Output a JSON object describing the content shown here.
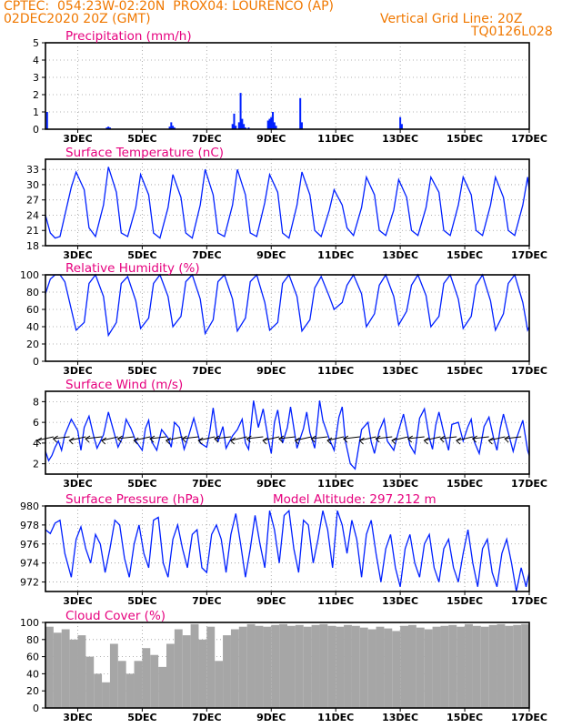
{
  "header": {
    "line1": "CPTEC:  054:23W-02:20N  PROX04: LOURENCO (AP)",
    "line2": "02DEC2020 20Z (GMT)",
    "grid_note": "Vertical Grid Line: 20Z",
    "code": "TQ0126L028"
  },
  "colors": {
    "header": "#f07800",
    "title": "#e6007e",
    "line": "#0020ff",
    "cloud": "#a6a6a6"
  },
  "x_axis": {
    "ticks": [
      "3DEC",
      "5DEC",
      "7DEC",
      "9DEC",
      "11DEC",
      "13DEC",
      "15DEC",
      "17DEC"
    ],
    "tick_days": [
      3,
      5,
      7,
      9,
      11,
      13,
      15,
      17
    ],
    "range_days": [
      2.0,
      17.0
    ]
  },
  "chart_data": [
    {
      "type": "bar",
      "title": "Precipitation (mm/h)",
      "ylim": [
        0,
        5
      ],
      "yticks": [
        0,
        1,
        2,
        3,
        4,
        5
      ],
      "grid": true,
      "x": [
        2.05,
        3.9,
        3.95,
        4.0,
        5.85,
        5.9,
        5.95,
        6.0,
        7.8,
        7.85,
        7.9,
        8.0,
        8.05,
        8.1,
        8.15,
        8.2,
        8.3,
        8.9,
        8.95,
        9.0,
        9.05,
        9.1,
        9.15,
        9.9,
        9.95,
        13.0,
        13.05
      ],
      "values": [
        1.0,
        0.1,
        0.15,
        0.1,
        0.15,
        0.4,
        0.2,
        0.1,
        0.3,
        0.9,
        0.2,
        0.4,
        2.1,
        0.6,
        0.3,
        0.1,
        0.1,
        0.5,
        0.6,
        0.7,
        1.0,
        0.4,
        0.2,
        1.8,
        0.4,
        0.7,
        0.3
      ]
    },
    {
      "type": "line",
      "title": "Surface Temperature (nC)",
      "ylim": [
        18,
        35
      ],
      "yticks": [
        18,
        21,
        24,
        27,
        30,
        33
      ],
      "grid": true,
      "x": [
        2.0,
        2.15,
        2.3,
        2.45,
        2.6,
        2.8,
        2.95,
        3.2,
        3.35,
        3.55,
        3.8,
        3.95,
        4.2,
        4.35,
        4.55,
        4.8,
        4.95,
        5.2,
        5.35,
        5.55,
        5.8,
        5.95,
        6.2,
        6.35,
        6.55,
        6.8,
        6.95,
        7.2,
        7.35,
        7.55,
        7.8,
        7.95,
        8.2,
        8.35,
        8.55,
        8.8,
        8.95,
        9.2,
        9.35,
        9.55,
        9.8,
        9.95,
        10.2,
        10.35,
        10.55,
        10.8,
        10.95,
        11.2,
        11.35,
        11.55,
        11.8,
        11.95,
        12.2,
        12.35,
        12.55,
        12.8,
        12.95,
        13.2,
        13.35,
        13.55,
        13.8,
        13.95,
        14.2,
        14.35,
        14.55,
        14.8,
        14.95,
        15.2,
        15.35,
        15.55,
        15.8,
        15.95,
        16.2,
        16.35,
        16.55,
        16.8,
        16.95,
        17.0
      ],
      "values": [
        24.0,
        20.5,
        19.5,
        19.8,
        24.0,
        29.5,
        32.5,
        29.0,
        21.5,
        19.8,
        26.0,
        33.5,
        28.5,
        20.5,
        19.8,
        25.5,
        32.0,
        28.0,
        20.5,
        19.5,
        25.5,
        32.0,
        27.5,
        20.5,
        19.5,
        26.0,
        33.0,
        28.0,
        20.5,
        19.8,
        26.0,
        33.0,
        28.0,
        20.5,
        19.8,
        26.5,
        32.0,
        28.5,
        20.5,
        19.5,
        26.0,
        32.5,
        28.0,
        21.0,
        19.8,
        25.0,
        29.0,
        26.0,
        21.5,
        20.0,
        25.5,
        31.5,
        28.0,
        21.0,
        20.0,
        25.0,
        31.0,
        27.5,
        21.0,
        20.0,
        25.5,
        31.5,
        28.5,
        21.0,
        20.0,
        26.0,
        31.5,
        28.0,
        21.0,
        20.0,
        26.0,
        31.5,
        27.5,
        21.0,
        20.0,
        26.0,
        31.5,
        29.0
      ]
    },
    {
      "type": "line",
      "title": "Relative Humidity (%)",
      "ylim": [
        0,
        100
      ],
      "yticks": [
        0,
        20,
        40,
        60,
        80,
        100
      ],
      "grid": true,
      "x": [
        2.0,
        2.15,
        2.3,
        2.45,
        2.6,
        2.8,
        2.95,
        3.2,
        3.35,
        3.55,
        3.8,
        3.95,
        4.2,
        4.35,
        4.55,
        4.8,
        4.95,
        5.2,
        5.35,
        5.55,
        5.8,
        5.95,
        6.2,
        6.35,
        6.55,
        6.8,
        6.95,
        7.2,
        7.35,
        7.55,
        7.8,
        7.95,
        8.2,
        8.35,
        8.55,
        8.8,
        8.95,
        9.2,
        9.35,
        9.55,
        9.8,
        9.95,
        10.2,
        10.35,
        10.55,
        10.8,
        10.95,
        11.2,
        11.35,
        11.55,
        11.8,
        11.95,
        12.2,
        12.35,
        12.55,
        12.8,
        12.95,
        13.2,
        13.35,
        13.55,
        13.8,
        13.95,
        14.2,
        14.35,
        14.55,
        14.8,
        14.95,
        15.2,
        15.35,
        15.55,
        15.8,
        15.95,
        16.2,
        16.35,
        16.55,
        16.8,
        16.95,
        17.0
      ],
      "values": [
        78,
        95,
        100,
        100,
        92,
        60,
        36,
        45,
        90,
        100,
        75,
        30,
        45,
        90,
        98,
        70,
        38,
        50,
        90,
        100,
        75,
        40,
        52,
        92,
        100,
        72,
        32,
        48,
        92,
        100,
        72,
        35,
        50,
        92,
        100,
        68,
        36,
        45,
        90,
        100,
        75,
        35,
        48,
        85,
        98,
        75,
        60,
        68,
        88,
        100,
        78,
        40,
        55,
        88,
        100,
        75,
        42,
        58,
        88,
        100,
        76,
        40,
        52,
        90,
        100,
        72,
        38,
        52,
        88,
        100,
        70,
        36,
        55,
        90,
        100,
        68,
        36,
        40
      ]
    },
    {
      "type": "line",
      "title": "Surface Wind (m/s)",
      "ylim": [
        1,
        9
      ],
      "yticks": [
        2,
        4,
        6,
        8
      ],
      "grid": true,
      "x": [
        2.0,
        2.1,
        2.2,
        2.3,
        2.4,
        2.5,
        2.6,
        2.8,
        3.0,
        3.1,
        3.2,
        3.35,
        3.5,
        3.6,
        3.8,
        3.95,
        4.1,
        4.25,
        4.4,
        4.5,
        4.65,
        4.8,
        5.0,
        5.1,
        5.2,
        5.3,
        5.45,
        5.6,
        5.8,
        5.9,
        6.0,
        6.15,
        6.3,
        6.45,
        6.6,
        6.8,
        7.0,
        7.1,
        7.2,
        7.35,
        7.5,
        7.6,
        7.8,
        7.95,
        8.1,
        8.2,
        8.3,
        8.45,
        8.6,
        8.75,
        8.9,
        9.0,
        9.1,
        9.2,
        9.35,
        9.5,
        9.6,
        9.8,
        10.0,
        10.1,
        10.2,
        10.35,
        10.5,
        10.6,
        10.8,
        10.95,
        11.1,
        11.2,
        11.3,
        11.45,
        11.6,
        11.8,
        12.0,
        12.1,
        12.2,
        12.35,
        12.5,
        12.6,
        12.8,
        12.95,
        13.1,
        13.2,
        13.3,
        13.45,
        13.6,
        13.75,
        13.9,
        14.0,
        14.1,
        14.2,
        14.35,
        14.5,
        14.6,
        14.8,
        14.95,
        15.1,
        15.2,
        15.3,
        15.45,
        15.6,
        15.75,
        15.9,
        16.0,
        16.1,
        16.2,
        16.35,
        16.5,
        16.6,
        16.8,
        16.95,
        17.0
      ],
      "values": [
        3.2,
        2.3,
        2.8,
        3.6,
        4.2,
        3.3,
        4.8,
        6.3,
        5.2,
        3.3,
        5.5,
        6.6,
        4.6,
        3.5,
        4.8,
        7.0,
        5.3,
        3.6,
        4.6,
        6.3,
        5.4,
        4.2,
        3.3,
        5.4,
        6.2,
        4.1,
        3.3,
        5.3,
        4.5,
        3.6,
        6.0,
        5.5,
        3.4,
        4.8,
        6.4,
        4.0,
        3.6,
        5.2,
        7.4,
        4.1,
        5.6,
        3.5,
        4.7,
        5.3,
        6.3,
        4.0,
        3.4,
        8.1,
        5.5,
        7.3,
        4.5,
        3.0,
        6.0,
        7.2,
        4.0,
        5.5,
        7.5,
        3.5,
        5.4,
        7.0,
        5.0,
        3.5,
        8.1,
        6.2,
        4.4,
        3.3,
        6.5,
        7.5,
        4.2,
        2.0,
        1.5,
        5.3,
        6.0,
        4.1,
        3.0,
        5.2,
        6.3,
        4.2,
        3.3,
        5.2,
        6.8,
        5.3,
        3.8,
        3.0,
        6.4,
        7.3,
        4.5,
        3.4,
        5.7,
        7.0,
        5.0,
        3.3,
        5.8,
        6.0,
        4.2,
        5.6,
        6.3,
        4.1,
        3.0,
        5.6,
        6.5,
        4.4,
        3.3,
        5.4,
        6.8,
        5.0,
        3.2,
        4.4,
        6.2,
        3.3,
        2.8
      ]
    },
    {
      "type": "line",
      "title": "Surface Pressure (hPa)",
      "annotation": "Model Altitude: 297.212 m",
      "ylim": [
        971,
        980
      ],
      "yticks": [
        972,
        974,
        976,
        978,
        980
      ],
      "grid": true,
      "x": [
        2.0,
        2.15,
        2.3,
        2.45,
        2.6,
        2.8,
        2.95,
        3.1,
        3.25,
        3.4,
        3.55,
        3.7,
        3.85,
        4.0,
        4.15,
        4.3,
        4.45,
        4.6,
        4.75,
        4.9,
        5.05,
        5.2,
        5.35,
        5.5,
        5.65,
        5.8,
        5.95,
        6.1,
        6.25,
        6.4,
        6.55,
        6.7,
        6.85,
        7.0,
        7.15,
        7.3,
        7.45,
        7.6,
        7.75,
        7.9,
        8.05,
        8.2,
        8.35,
        8.5,
        8.65,
        8.8,
        8.95,
        9.1,
        9.25,
        9.4,
        9.55,
        9.7,
        9.85,
        10.0,
        10.15,
        10.3,
        10.45,
        10.6,
        10.75,
        10.9,
        11.05,
        11.2,
        11.35,
        11.5,
        11.65,
        11.8,
        11.95,
        12.1,
        12.25,
        12.4,
        12.55,
        12.7,
        12.85,
        13.0,
        13.15,
        13.3,
        13.45,
        13.6,
        13.75,
        13.9,
        14.05,
        14.2,
        14.35,
        14.5,
        14.65,
        14.8,
        14.95,
        15.1,
        15.25,
        15.4,
        15.55,
        15.7,
        15.85,
        16.0,
        16.15,
        16.3,
        16.45,
        16.6,
        16.75,
        16.9,
        17.0
      ],
      "values": [
        977.5,
        977.1,
        978.2,
        978.5,
        975.0,
        972.5,
        976.5,
        977.8,
        975.5,
        974.0,
        977.0,
        976.0,
        973.0,
        975.5,
        978.5,
        978.0,
        974.5,
        972.5,
        976.0,
        978.0,
        975.0,
        973.5,
        978.5,
        978.8,
        974.0,
        972.5,
        976.5,
        978.0,
        975.5,
        973.5,
        977.0,
        977.5,
        973.5,
        973.0,
        977.0,
        978.0,
        976.5,
        973.0,
        977.0,
        979.2,
        976.0,
        972.5,
        975.5,
        979.0,
        976.0,
        973.5,
        979.5,
        977.5,
        974.0,
        979.0,
        979.5,
        975.5,
        973.0,
        978.5,
        978.0,
        974.0,
        976.5,
        979.5,
        977.5,
        973.5,
        979.5,
        978.0,
        975.0,
        978.5,
        976.5,
        972.5,
        977.0,
        978.5,
        975.0,
        972.0,
        975.5,
        977.0,
        973.5,
        971.5,
        975.5,
        977.0,
        974.0,
        972.5,
        976.0,
        977.0,
        973.5,
        972.0,
        975.5,
        976.5,
        973.5,
        972.0,
        975.0,
        977.5,
        974.0,
        971.5,
        975.5,
        976.5,
        973.0,
        971.5,
        975.0,
        976.5,
        974.0,
        971.0,
        973.5,
        971.5,
        973.0
      ]
    },
    {
      "type": "bar",
      "title": "Cloud Cover (%)",
      "ylim": [
        0,
        100
      ],
      "yticks": [
        0,
        20,
        40,
        60,
        80,
        100
      ],
      "grid": true,
      "x": [
        2.0,
        2.25,
        2.5,
        2.75,
        3.0,
        3.25,
        3.5,
        3.75,
        4.0,
        4.25,
        4.5,
        4.75,
        5.0,
        5.25,
        5.5,
        5.75,
        6.0,
        6.25,
        6.5,
        6.75,
        7.0,
        7.25,
        7.5,
        7.75,
        8.0,
        8.25,
        8.5,
        8.75,
        9.0,
        9.25,
        9.5,
        9.75,
        10.0,
        10.25,
        10.5,
        10.75,
        11.0,
        11.25,
        11.5,
        11.75,
        12.0,
        12.25,
        12.5,
        12.75,
        13.0,
        13.25,
        13.5,
        13.75,
        14.0,
        14.25,
        14.5,
        14.75,
        15.0,
        15.25,
        15.5,
        15.75,
        16.0,
        16.25,
        16.5,
        16.75
      ],
      "values": [
        95,
        88,
        92,
        80,
        85,
        60,
        40,
        30,
        75,
        55,
        40,
        55,
        70,
        62,
        48,
        75,
        92,
        85,
        98,
        80,
        95,
        55,
        85,
        92,
        95,
        98,
        96,
        95,
        97,
        98,
        96,
        97,
        95,
        97,
        98,
        96,
        95,
        97,
        96,
        94,
        92,
        95,
        93,
        90,
        96,
        97,
        94,
        92,
        95,
        96,
        97,
        95,
        98,
        96,
        95,
        97,
        98,
        96,
        97,
        98
      ]
    }
  ]
}
